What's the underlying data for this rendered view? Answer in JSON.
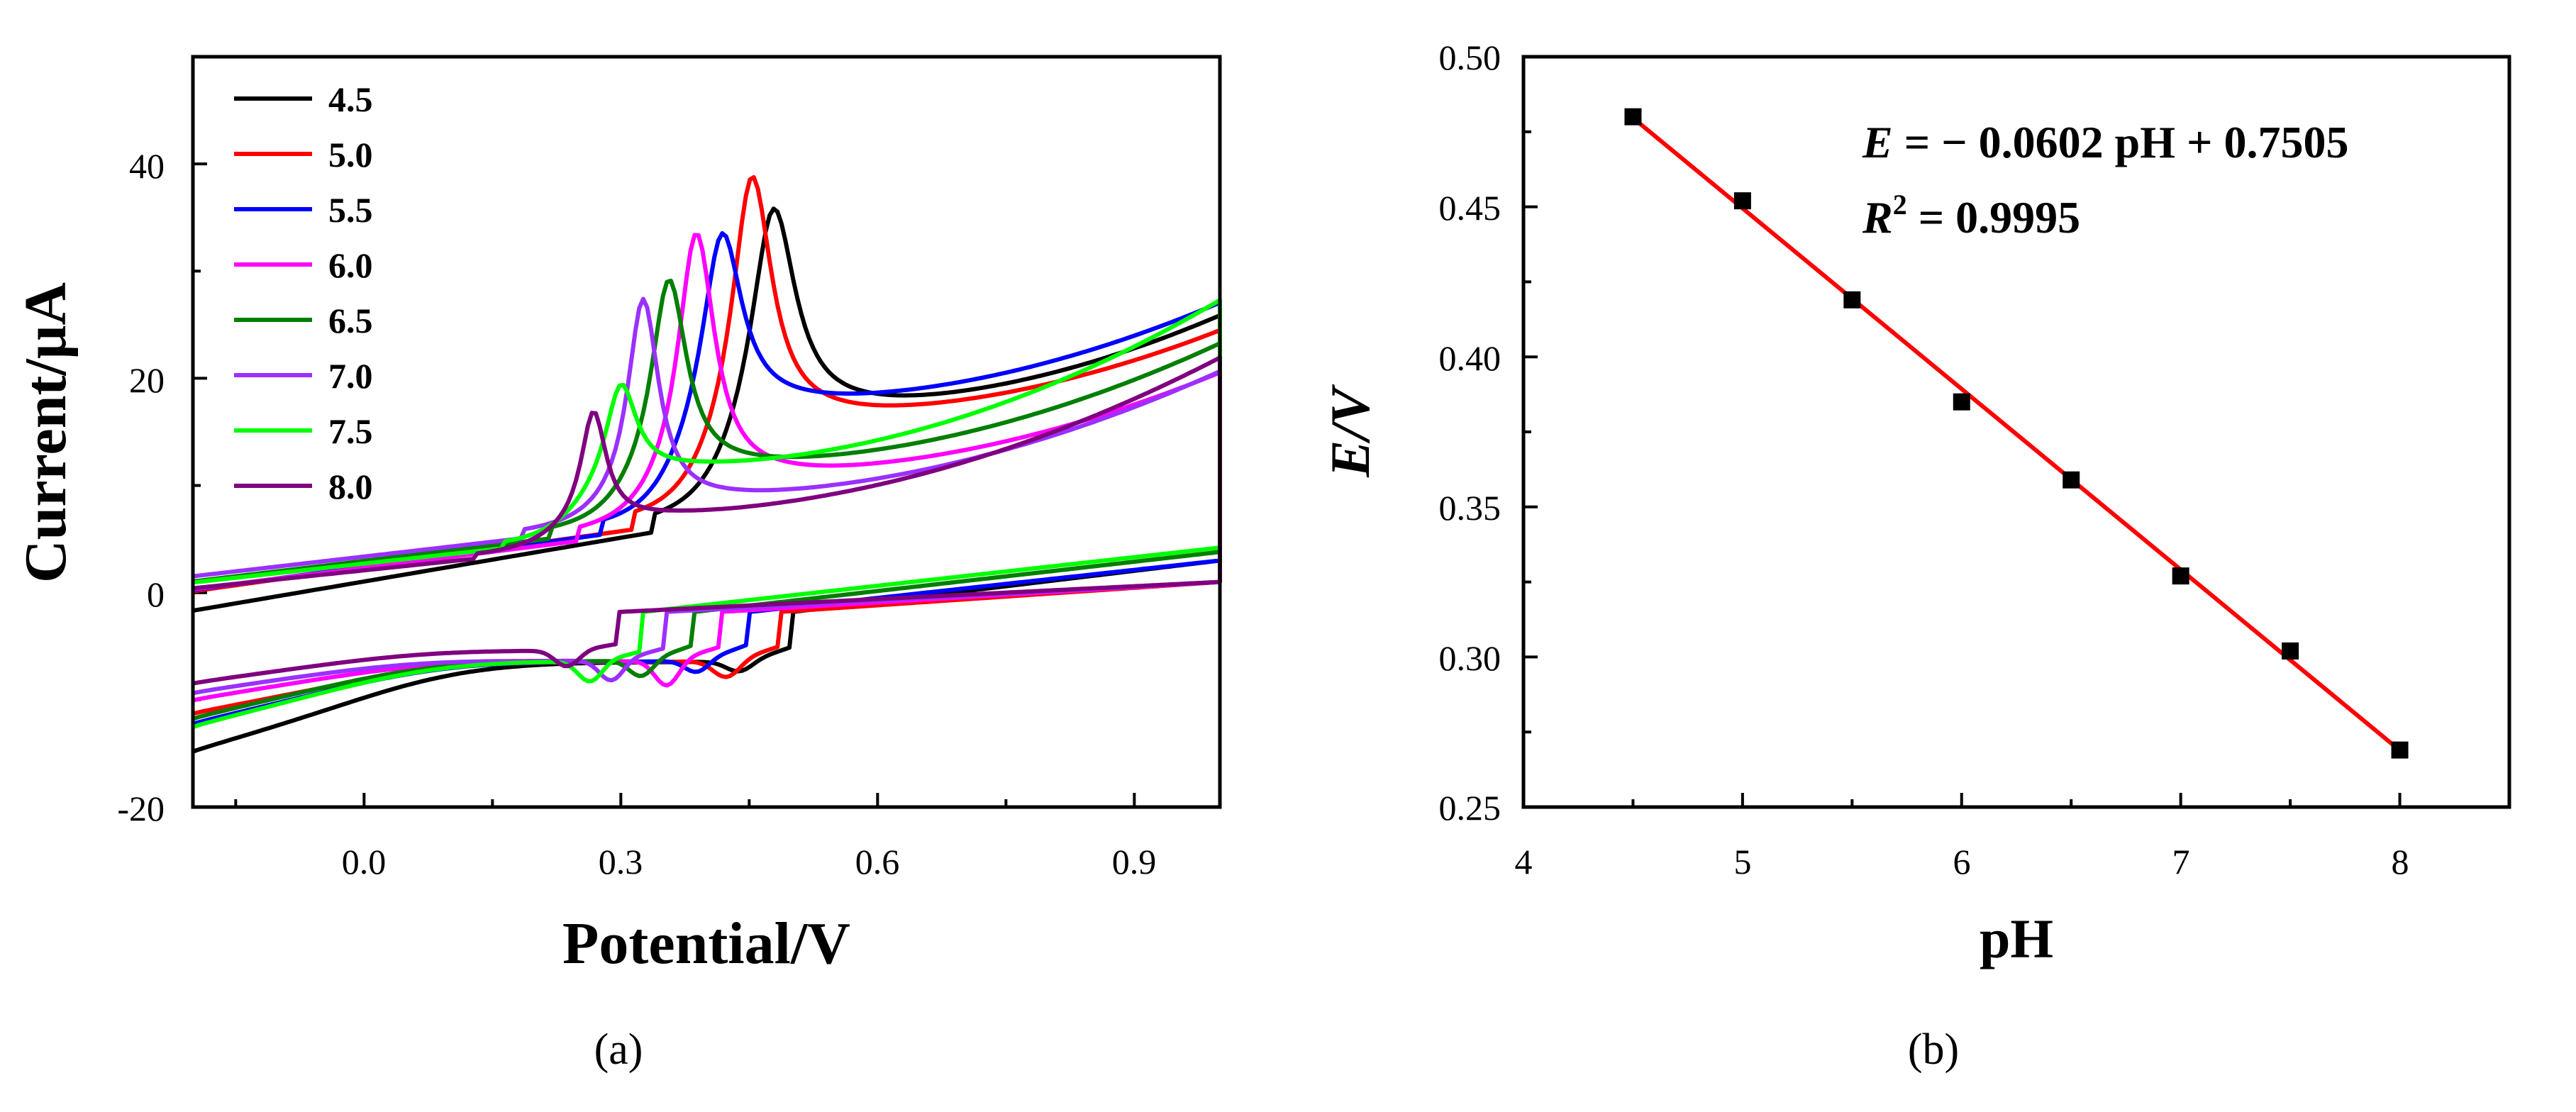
{
  "chart_data": [
    {
      "type": "line",
      "panel_label": "(a)",
      "title": "",
      "xlabel": "Potential/V",
      "ylabel": "Current/μA",
      "xlim": [
        -0.2,
        1.0
      ],
      "ylim": [
        -20,
        50
      ],
      "xticks": [
        0.0,
        0.3,
        0.6,
        0.9
      ],
      "xtick_labels": [
        "0.0",
        "0.3",
        "0.6",
        "0.9"
      ],
      "yticks": [
        -20,
        0,
        20,
        40
      ],
      "ytick_labels": [
        "-20",
        "0",
        "20",
        "40"
      ],
      "legend_position": "top-left",
      "series": [
        {
          "name": "4.5",
          "color": "#000000",
          "ox": 0.478,
          "oh": 37.0,
          "ow": 0.031,
          "oa": 8.0,
          "os": 0.7,
          "ob": 7.0,
          "op": 16.0,
          "ap": 20.5,
          "rx": 0.44,
          "ry": -7.8,
          "rs": 0.022,
          "rd": 6.5,
          "c0": -15.2,
          "c1": 3.0
        },
        {
          "name": "5.0",
          "color": "#ff0000",
          "ox": 0.453,
          "oh": 40.0,
          "ow": 0.028,
          "oa": 6.0,
          "os": 0.65,
          "ob": 7.0,
          "op": 15.5,
          "ap": 18.5,
          "rx": 0.425,
          "ry": -8.5,
          "rs": 0.022,
          "rd": 6.5,
          "c0": -11.5,
          "c1": 1.0
        },
        {
          "name": "5.5",
          "color": "#0000ff",
          "ox": 0.418,
          "oh": 35.0,
          "ow": 0.028,
          "oa": 6.0,
          "os": 0.6,
          "ob": 6.5,
          "op": 16.8,
          "ap": 19.0,
          "rx": 0.39,
          "ry": -8.0,
          "rs": 0.02,
          "rd": 6.5,
          "c0": -12.5,
          "c1": 3.0
        },
        {
          "name": "6.0",
          "color": "#ff00ff",
          "ox": 0.388,
          "oh": 34.0,
          "ow": 0.026,
          "oa": 6.0,
          "os": 0.5,
          "ob": 5.8,
          "op": 10.0,
          "ap": 17.0,
          "rx": 0.355,
          "ry": -9.5,
          "rs": 0.02,
          "rd": 6.5,
          "c0": -10.2,
          "c1": 1.0
        },
        {
          "name": "6.5",
          "color": "#007f00",
          "ox": 0.356,
          "oh": 29.8,
          "ow": 0.025,
          "oa": 6.0,
          "os": 0.45,
          "ob": 6.0,
          "op": 11.0,
          "ap": 18.5,
          "rx": 0.325,
          "ry": -8.5,
          "rs": 0.02,
          "rd": 6.5,
          "c0": -12.0,
          "c1": 3.8
        },
        {
          "name": "7.0",
          "color": "#9b30ff",
          "ox": 0.326,
          "oh": 27.5,
          "ow": 0.022,
          "oa": 6.0,
          "os": 0.4,
          "ob": 6.0,
          "op": 8.0,
          "ap": 17.0,
          "rx": 0.29,
          "ry": -9.0,
          "rs": 0.02,
          "rd": 6.5,
          "c0": -9.5,
          "c1": 1.0
        },
        {
          "name": "7.5",
          "color": "#00ff00",
          "ox": 0.3,
          "oh": 20.2,
          "ow": 0.022,
          "oa": 6.0,
          "os": 0.35,
          "ob": 5.0,
          "op": 11.0,
          "ap": 22.0,
          "rx": 0.265,
          "ry": -9.0,
          "rs": 0.02,
          "rd": 6.5,
          "c0": -12.8,
          "c1": 4.2
        },
        {
          "name": "8.0",
          "color": "#7f007f",
          "ox": 0.268,
          "oh": 17.1,
          "ow": 0.018,
          "oa": 6.0,
          "os": 0.3,
          "ob": 4.0,
          "op": 6.5,
          "ap": 18.0,
          "rx": 0.238,
          "ry": -7.5,
          "rs": 0.02,
          "rd": 5.5,
          "c0": -8.6,
          "c1": 1.0
        }
      ]
    },
    {
      "type": "scatter",
      "panel_label": "(b)",
      "title": "",
      "xlabel": "pH",
      "ylabel": "E/V",
      "xlim": [
        4.0,
        8.5
      ],
      "ylim": [
        0.25,
        0.5
      ],
      "xticks": [
        4,
        5,
        6,
        7,
        8
      ],
      "xtick_labels": [
        "4",
        "5",
        "6",
        "7",
        "8"
      ],
      "yticks": [
        0.25,
        0.3,
        0.35,
        0.4,
        0.45,
        0.5
      ],
      "ytick_labels": [
        "0.25",
        "0.30",
        "0.35",
        "0.40",
        "0.45",
        "0.50"
      ],
      "points_x": [
        4.5,
        5.0,
        5.5,
        6.0,
        6.5,
        7.0,
        7.5,
        8.0
      ],
      "points_y": [
        0.48,
        0.452,
        0.419,
        0.385,
        0.359,
        0.327,
        0.302,
        0.269
      ],
      "fit": {
        "slope": -0.0602,
        "intercept": 0.7505,
        "x_range": [
          4.5,
          8.0
        ],
        "color": "#ff0000"
      },
      "equation_text": {
        "E": "E",
        "rest": " = − 0.0602 pH + 0.7505"
      },
      "r2_text": {
        "R": "R",
        "sup": "2",
        "rest": " = 0.9995"
      }
    }
  ]
}
